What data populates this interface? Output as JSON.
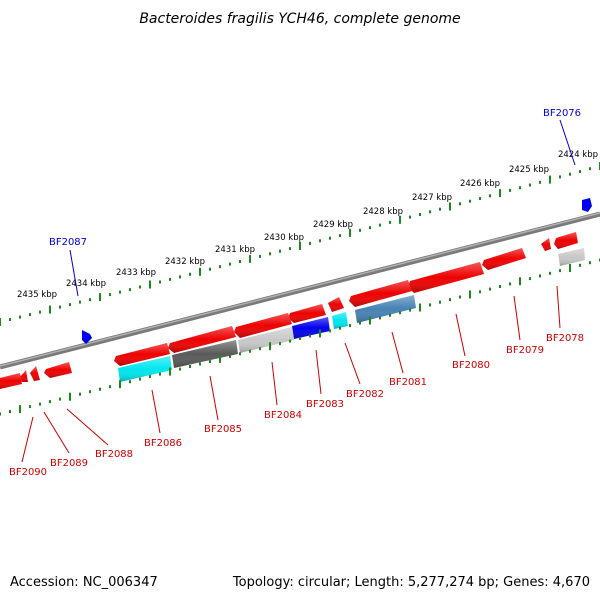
{
  "title": "Bacteroides fragilis YCH46, complete genome",
  "footer": {
    "accession": "Accession: NC_006347",
    "summary": "Topology: circular; Length: 5,277,274 bp; Genes: 4,670"
  },
  "colors": {
    "backbone": "#7a7a7a",
    "tick_green": "#1a8a1a",
    "label_red": "#cc0000",
    "label_blue": "#0000cc",
    "gene_red": "#ee0000",
    "gene_blue": "#0000ee",
    "gene_cyan": "#00e6ee",
    "gene_steel": "#4682b4",
    "gene_darkgray": "#5a5a5a",
    "gene_lightgray": "#c8c8c8"
  },
  "scale_labels": [
    "2424 kbp",
    "2425 kbp",
    "2426 kbp",
    "2427 kbp",
    "2428 kbp",
    "2429 kbp",
    "2430 kbp",
    "2431 kbp",
    "2432 kbp",
    "2433 kbp",
    "2434 kbp",
    "2435 kbp"
  ],
  "gene_labels_top": [
    {
      "id": "BF2076",
      "color": "blue"
    },
    {
      "id": "BF2087",
      "color": "blue"
    }
  ],
  "gene_labels_bottom": [
    {
      "id": "BF2078"
    },
    {
      "id": "BF2079"
    },
    {
      "id": "BF2080"
    },
    {
      "id": "BF2081"
    },
    {
      "id": "BF2082"
    },
    {
      "id": "BF2083"
    },
    {
      "id": "BF2084"
    },
    {
      "id": "BF2085"
    },
    {
      "id": "BF2086"
    },
    {
      "id": "BF2088"
    },
    {
      "id": "BF2089"
    },
    {
      "id": "BF2090"
    }
  ]
}
